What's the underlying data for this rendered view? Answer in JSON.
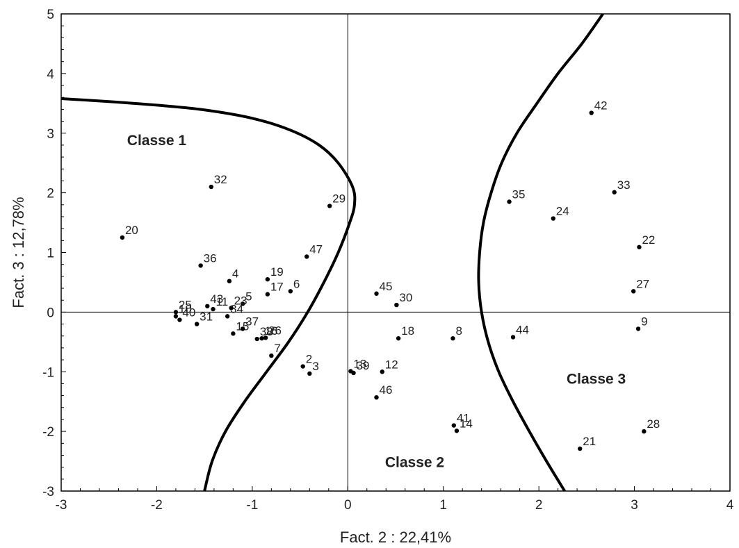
{
  "chart_data": {
    "type": "scatter",
    "xlabel": "Fact. 2 : 22,41%",
    "ylabel": "Fact. 3 : 12,78%",
    "xlim": [
      -3,
      4
    ],
    "ylim": [
      -3,
      5
    ],
    "xticks": [
      -3,
      -2,
      -1,
      0,
      1,
      2,
      3,
      4
    ],
    "yticks": [
      -3,
      -2,
      -1,
      0,
      1,
      2,
      3,
      4,
      5
    ],
    "reference_lines": {
      "x": 0,
      "y": 0
    },
    "grid": false,
    "points": [
      {
        "label": "2",
        "x": -0.47,
        "y": -0.91
      },
      {
        "label": "3",
        "x": -0.4,
        "y": -1.03
      },
      {
        "label": "4",
        "x": -1.24,
        "y": 0.52
      },
      {
        "label": "5",
        "x": -1.1,
        "y": 0.14
      },
      {
        "label": "6",
        "x": -0.6,
        "y": 0.35
      },
      {
        "label": "7",
        "x": -0.8,
        "y": -0.73
      },
      {
        "label": "8",
        "x": 1.1,
        "y": -0.44
      },
      {
        "label": "9",
        "x": 3.04,
        "y": -0.28
      },
      {
        "label": "10",
        "x": -1.8,
        "y": -0.07
      },
      {
        "label": "11",
        "x": -1.41,
        "y": 0.05
      },
      {
        "label": "12",
        "x": 0.36,
        "y": -1.0
      },
      {
        "label": "13",
        "x": 0.03,
        "y": -0.99
      },
      {
        "label": "14",
        "x": 1.14,
        "y": -1.99
      },
      {
        "label": "15",
        "x": -1.2,
        "y": -0.36
      },
      {
        "label": "16",
        "x": -0.9,
        "y": -0.44
      },
      {
        "label": "17",
        "x": -0.84,
        "y": 0.3
      },
      {
        "label": "18",
        "x": 0.53,
        "y": -0.44
      },
      {
        "label": "19",
        "x": -0.84,
        "y": 0.55
      },
      {
        "label": "20",
        "x": -2.36,
        "y": 1.25
      },
      {
        "label": "21",
        "x": 2.43,
        "y": -2.29
      },
      {
        "label": "22",
        "x": 3.05,
        "y": 1.09
      },
      {
        "label": "23",
        "x": -1.22,
        "y": 0.07
      },
      {
        "label": "24",
        "x": 2.15,
        "y": 1.57
      },
      {
        "label": "25",
        "x": -1.8,
        "y": 0.0
      },
      {
        "label": "26",
        "x": -0.86,
        "y": -0.43
      },
      {
        "label": "27",
        "x": 2.99,
        "y": 0.35
      },
      {
        "label": "28",
        "x": 3.1,
        "y": -2.0
      },
      {
        "label": "29",
        "x": -0.19,
        "y": 1.78
      },
      {
        "label": "30",
        "x": 0.51,
        "y": 0.12
      },
      {
        "label": "31",
        "x": -1.58,
        "y": -0.2
      },
      {
        "label": "32",
        "x": -1.43,
        "y": 2.1
      },
      {
        "label": "33",
        "x": 2.79,
        "y": 2.01
      },
      {
        "label": "34",
        "x": -1.26,
        "y": -0.07
      },
      {
        "label": "35",
        "x": 1.69,
        "y": 1.85
      },
      {
        "label": "36",
        "x": -1.54,
        "y": 0.78
      },
      {
        "label": "37",
        "x": -1.1,
        "y": -0.28
      },
      {
        "label": "38",
        "x": -0.95,
        "y": -0.45
      },
      {
        "label": "39",
        "x": 0.06,
        "y": -1.02
      },
      {
        "label": "40",
        "x": -1.76,
        "y": -0.13
      },
      {
        "label": "41",
        "x": 1.11,
        "y": -1.9
      },
      {
        "label": "42",
        "x": 2.55,
        "y": 3.34
      },
      {
        "label": "43",
        "x": -1.47,
        "y": 0.1
      },
      {
        "label": "44",
        "x": 1.73,
        "y": -0.42
      },
      {
        "label": "45",
        "x": 0.3,
        "y": 0.31
      },
      {
        "label": "46",
        "x": 0.3,
        "y": -1.43
      },
      {
        "label": "47",
        "x": -0.43,
        "y": 0.93
      }
    ],
    "annotations": [
      {
        "text": "Classe 1",
        "x": -2.0,
        "y": 2.8
      },
      {
        "text": "Classe 2",
        "x": 0.7,
        "y": -2.6
      },
      {
        "text": "Classe 3",
        "x": 2.6,
        "y": -1.2
      }
    ],
    "boundaries": [
      [
        [
          -3.0,
          3.58
        ],
        [
          -2.5,
          3.53
        ],
        [
          -2.0,
          3.47
        ],
        [
          -1.5,
          3.39
        ],
        [
          -1.0,
          3.25
        ],
        [
          -0.6,
          3.05
        ],
        [
          -0.3,
          2.8
        ],
        [
          -0.1,
          2.5
        ],
        [
          0.05,
          2.1
        ],
        [
          0.07,
          1.8
        ],
        [
          0.02,
          1.5
        ],
        [
          -0.1,
          1.0
        ],
        [
          -0.25,
          0.5
        ],
        [
          -0.42,
          0.0
        ],
        [
          -0.62,
          -0.5
        ],
        [
          -0.85,
          -1.0
        ],
        [
          -1.08,
          -1.5
        ],
        [
          -1.28,
          -2.0
        ],
        [
          -1.42,
          -2.5
        ],
        [
          -1.5,
          -3.0
        ]
      ],
      [
        [
          2.27,
          -3.0
        ],
        [
          2.08,
          -2.5
        ],
        [
          1.9,
          -2.0
        ],
        [
          1.73,
          -1.5
        ],
        [
          1.58,
          -1.0
        ],
        [
          1.47,
          -0.5
        ],
        [
          1.4,
          0.0
        ],
        [
          1.37,
          0.5
        ],
        [
          1.38,
          1.0
        ],
        [
          1.42,
          1.5
        ],
        [
          1.5,
          2.0
        ],
        [
          1.61,
          2.5
        ],
        [
          1.77,
          3.0
        ],
        [
          1.98,
          3.5
        ],
        [
          2.2,
          4.0
        ],
        [
          2.45,
          4.5
        ],
        [
          2.67,
          5.0
        ]
      ]
    ]
  }
}
